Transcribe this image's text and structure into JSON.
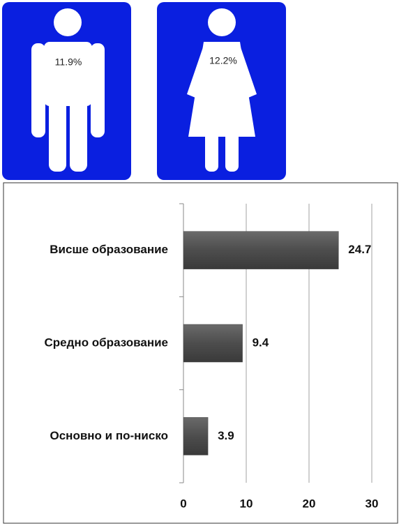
{
  "infographic": {
    "values": [
      11.9,
      12.2
    ],
    "value_labels": [
      "11.9%",
      "12.2%"
    ]
  },
  "chart_data": {
    "type": "bar",
    "orientation": "horizontal",
    "categories": [
      "Висше образование",
      "Средно образование",
      "Основно и по-ниско"
    ],
    "values": [
      24.7,
      9.4,
      3.9
    ],
    "color": "#4d4d4d",
    "xlim": [
      0,
      30
    ],
    "xticks": [
      0,
      10,
      20,
      30
    ],
    "grid": true
  }
}
